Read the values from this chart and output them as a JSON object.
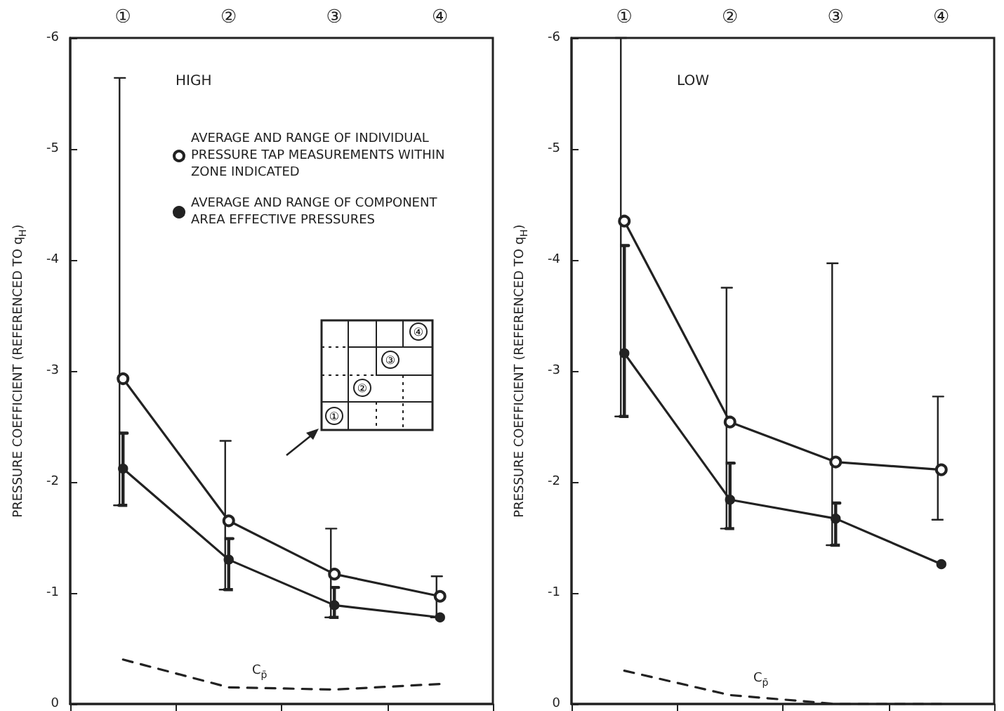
{
  "chart_data": [
    {
      "type": "line",
      "title": "HIGH",
      "ylabel": "PRESSURE COEFFICIENT (REFERENCED TO q$_{H}$)",
      "categories": [
        "①",
        "②",
        "③",
        "④"
      ],
      "ylim": [
        0,
        -6
      ],
      "yticks": [
        0,
        -1,
        -2,
        -3,
        -4,
        -5,
        -6
      ],
      "grid": false,
      "legend": "top",
      "series": [
        {
          "name": "AVERAGE AND RANGE OF INDIVIDUAL PRESSURE TAP MEASUREMENTS WITHIN ZONE INDICATED",
          "color": "#222222",
          "marker": "circle",
          "values": [
            -2.93,
            -1.65,
            -1.17,
            -0.97
          ],
          "errors": [
            [
              -1.79,
              -5.64
            ],
            [
              -1.03,
              -2.37
            ],
            [
              -0.78,
              -1.58
            ],
            [
              -0.78,
              -1.15
            ]
          ]
        },
        {
          "name": "AVERAGE AND RANGE OF COMPONENT AREA EFFECTIVE PRESSURES",
          "color": "#222222",
          "marker": "circle",
          "values": [
            -2.12,
            -1.3,
            -0.89,
            -0.78
          ],
          "errors": [
            [
              -1.79,
              -2.44
            ],
            [
              -1.03,
              -1.49
            ],
            [
              -0.78,
              -1.05
            ],
            null
          ]
        },
        {
          "name": "C$_{p̄}$",
          "color": "#222222",
          "marker": "none",
          "line_style": "dashed",
          "values": [
            -0.4,
            -0.15,
            -0.13,
            -0.18
          ]
        }
      ]
    },
    {
      "type": "line",
      "title": "LOW",
      "ylabel": "PRESSURE COEFFICIENT (REFERENCED TO q$_{H}$)",
      "categories": [
        "①",
        "②",
        "③",
        "④"
      ],
      "ylim": [
        0,
        -6
      ],
      "yticks": [
        0,
        -1,
        -2,
        -3,
        -4,
        -5,
        -6
      ],
      "grid": false,
      "series": [
        {
          "color": "#222222",
          "marker": "circle",
          "values": [
            -4.35,
            -2.54,
            -2.18,
            -2.11
          ],
          "errors": [
            [
              -2.59,
              -6
            ],
            [
              -1.58,
              -3.75
            ],
            [
              -1.43,
              -3.97
            ],
            [
              -1.66,
              -2.77
            ]
          ]
        },
        {
          "color": "#222222",
          "marker": "circle",
          "values": [
            -3.16,
            -1.84,
            -1.67,
            -1.26
          ],
          "errors": [
            [
              -2.59,
              -4.13
            ],
            [
              -1.58,
              -2.17
            ],
            [
              -1.43,
              -1.81
            ],
            null
          ]
        },
        {
          "name": "C$_{p̄}$",
          "color": "#222222",
          "marker": "none",
          "line_style": "dashed",
          "values": [
            -0.3,
            -0.08,
            0,
            0
          ]
        }
      ]
    }
  ]
}
